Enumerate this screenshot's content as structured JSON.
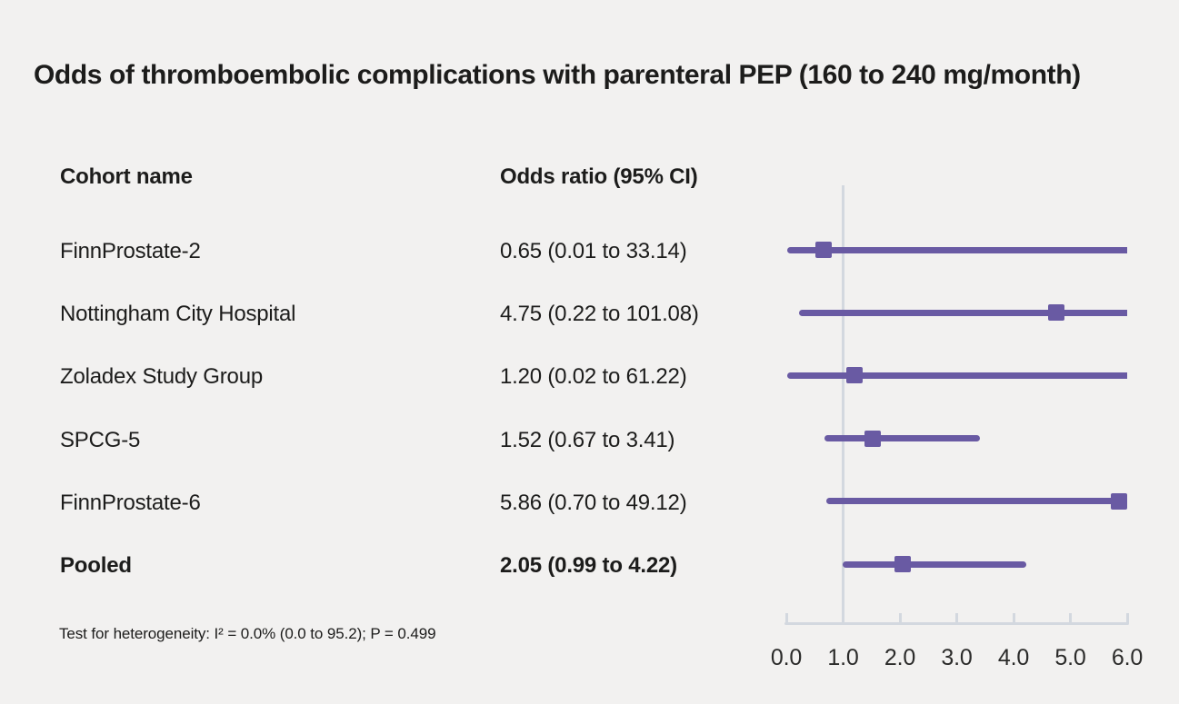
{
  "title": "Odds of thromboembolic complications with parenteral PEP (160 to 240 mg/month)",
  "table": {
    "col_cohort": "Cohort name",
    "col_or": "Odds ratio (95% CI)"
  },
  "footnote": "Test for heterogeneity: I² = 0.0% (0.0 to 95.2); P = 0.499",
  "colors": {
    "background": "#f2f1f0",
    "text": "#1c1c1b",
    "accent": "#695aa3",
    "axis": "#d3d8df"
  },
  "chart_data": {
    "type": "forest",
    "title": "Odds of thromboembolic complications with parenteral PEP (160 to 240 mg/month)",
    "xlabel": "",
    "ylabel": "",
    "xlim": [
      0.0,
      6.0
    ],
    "x_ticks": [
      0.0,
      1.0,
      2.0,
      3.0,
      4.0,
      5.0,
      6.0
    ],
    "x_tick_labels": [
      "0.0",
      "1.0",
      "2.0",
      "3.0",
      "4.0",
      "5.0",
      "6.0"
    ],
    "reference_line": 1.0,
    "grid": false,
    "legend": null,
    "rows": [
      {
        "label": "FinnProstate-2",
        "or": 0.65,
        "ci_low": 0.01,
        "ci_high": 33.14,
        "display": "0.65 (0.01 to 33.14)",
        "bold": false
      },
      {
        "label": "Nottingham City Hospital",
        "or": 4.75,
        "ci_low": 0.22,
        "ci_high": 101.08,
        "display": "4.75 (0.22 to 101.08)",
        "bold": false
      },
      {
        "label": "Zoladex Study Group",
        "or": 1.2,
        "ci_low": 0.02,
        "ci_high": 61.22,
        "display": "1.20 (0.02 to 61.22)",
        "bold": false
      },
      {
        "label": "SPCG-5",
        "or": 1.52,
        "ci_low": 0.67,
        "ci_high": 3.41,
        "display": "1.52 (0.67 to 3.41)",
        "bold": false
      },
      {
        "label": "FinnProstate-6",
        "or": 5.86,
        "ci_low": 0.7,
        "ci_high": 49.12,
        "display": "5.86 (0.70 to 49.12)",
        "bold": false
      },
      {
        "label": "Pooled",
        "or": 2.05,
        "ci_low": 0.99,
        "ci_high": 4.22,
        "display": "2.05 (0.99 to 4.22)",
        "bold": true
      }
    ]
  }
}
